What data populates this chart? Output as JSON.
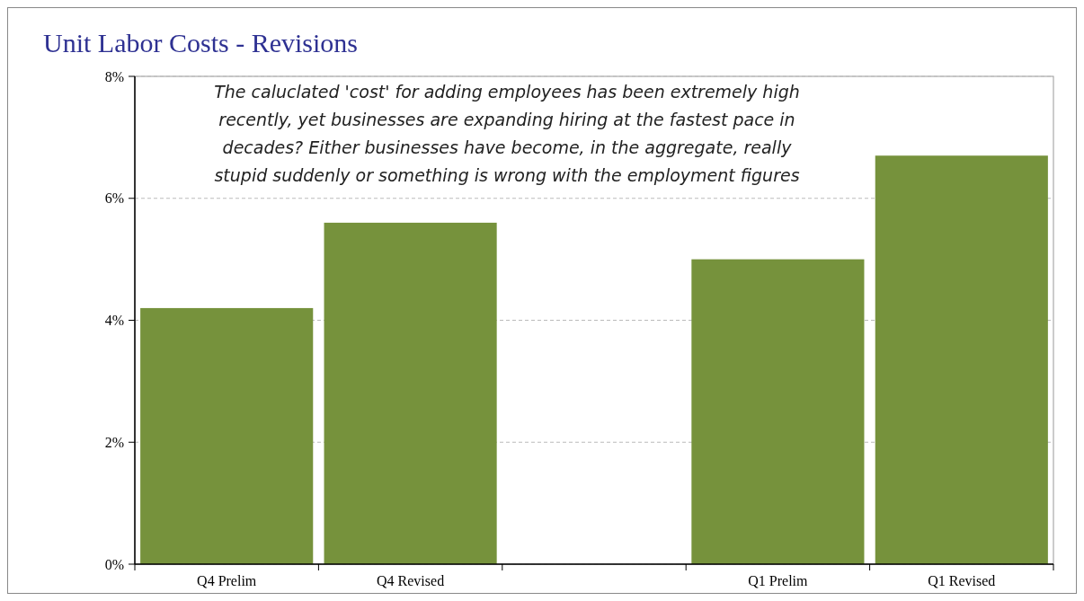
{
  "chart_data": {
    "type": "bar",
    "title": "Unit Labor Costs - Revisions",
    "categories": [
      "Q4 Prelim",
      "Q4 Revised",
      null,
      "Q1 Prelim",
      "Q1 Revised"
    ],
    "values": [
      4.2,
      5.6,
      null,
      5.0,
      6.7
    ],
    "color": "#76923c",
    "ylim": [
      0,
      8
    ],
    "yticks": [
      {
        "value": 0,
        "label": "0%"
      },
      {
        "value": 2,
        "label": "2%"
      },
      {
        "value": 4,
        "label": "4%"
      },
      {
        "value": 6,
        "label": "6%"
      },
      {
        "value": 8,
        "label": "8%"
      }
    ],
    "grid": "y",
    "annotations": [
      "The caluclated 'cost' for adding employees has been extremely high recently, yet businesses are expanding hiring at the fastest pace in decades? Either businesses have become, in the aggregate, really stupid suddenly or something is wrong with the employment figures"
    ]
  }
}
